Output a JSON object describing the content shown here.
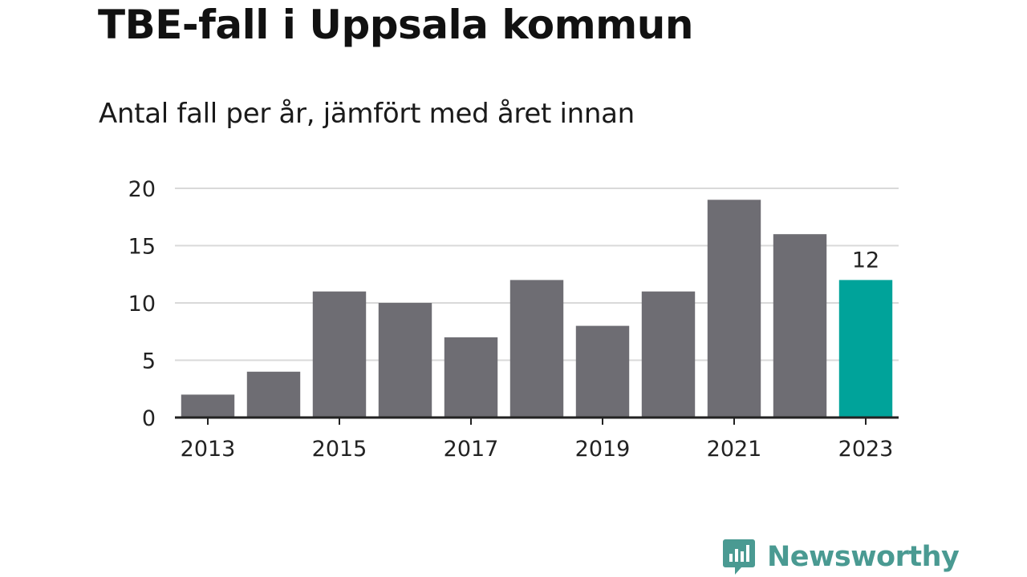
{
  "title": "TBE-fall i Uppsala kommun",
  "subtitle": "Antal fall per år, jämfört med året innan",
  "brand": {
    "name": "Newsworthy",
    "color": "#4a9a92"
  },
  "colors": {
    "bar": "#6e6d73",
    "highlight": "#00a39a",
    "grid": "#d9d9d9",
    "axis": "#222222",
    "text": "#222222"
  },
  "chart_data": {
    "type": "bar",
    "categories": [
      "2013",
      "2014",
      "2015",
      "2016",
      "2017",
      "2018",
      "2019",
      "2020",
      "2021",
      "2022",
      "2023"
    ],
    "values": [
      2,
      4,
      11,
      10,
      7,
      12,
      8,
      11,
      19,
      16,
      12
    ],
    "highlight": "2023",
    "data_labels": [
      {
        "category": "2023",
        "text": "12"
      }
    ],
    "x_tick_labels": [
      "2013",
      "2015",
      "2017",
      "2019",
      "2021",
      "2023"
    ],
    "y_ticks": [
      0,
      5,
      10,
      15,
      20
    ],
    "ylim": [
      0,
      20
    ],
    "title": "TBE-fall i Uppsala kommun",
    "subtitle": "Antal fall per år, jämfört med året innan",
    "xlabel": "",
    "ylabel": "",
    "grid": true,
    "legend": false
  }
}
